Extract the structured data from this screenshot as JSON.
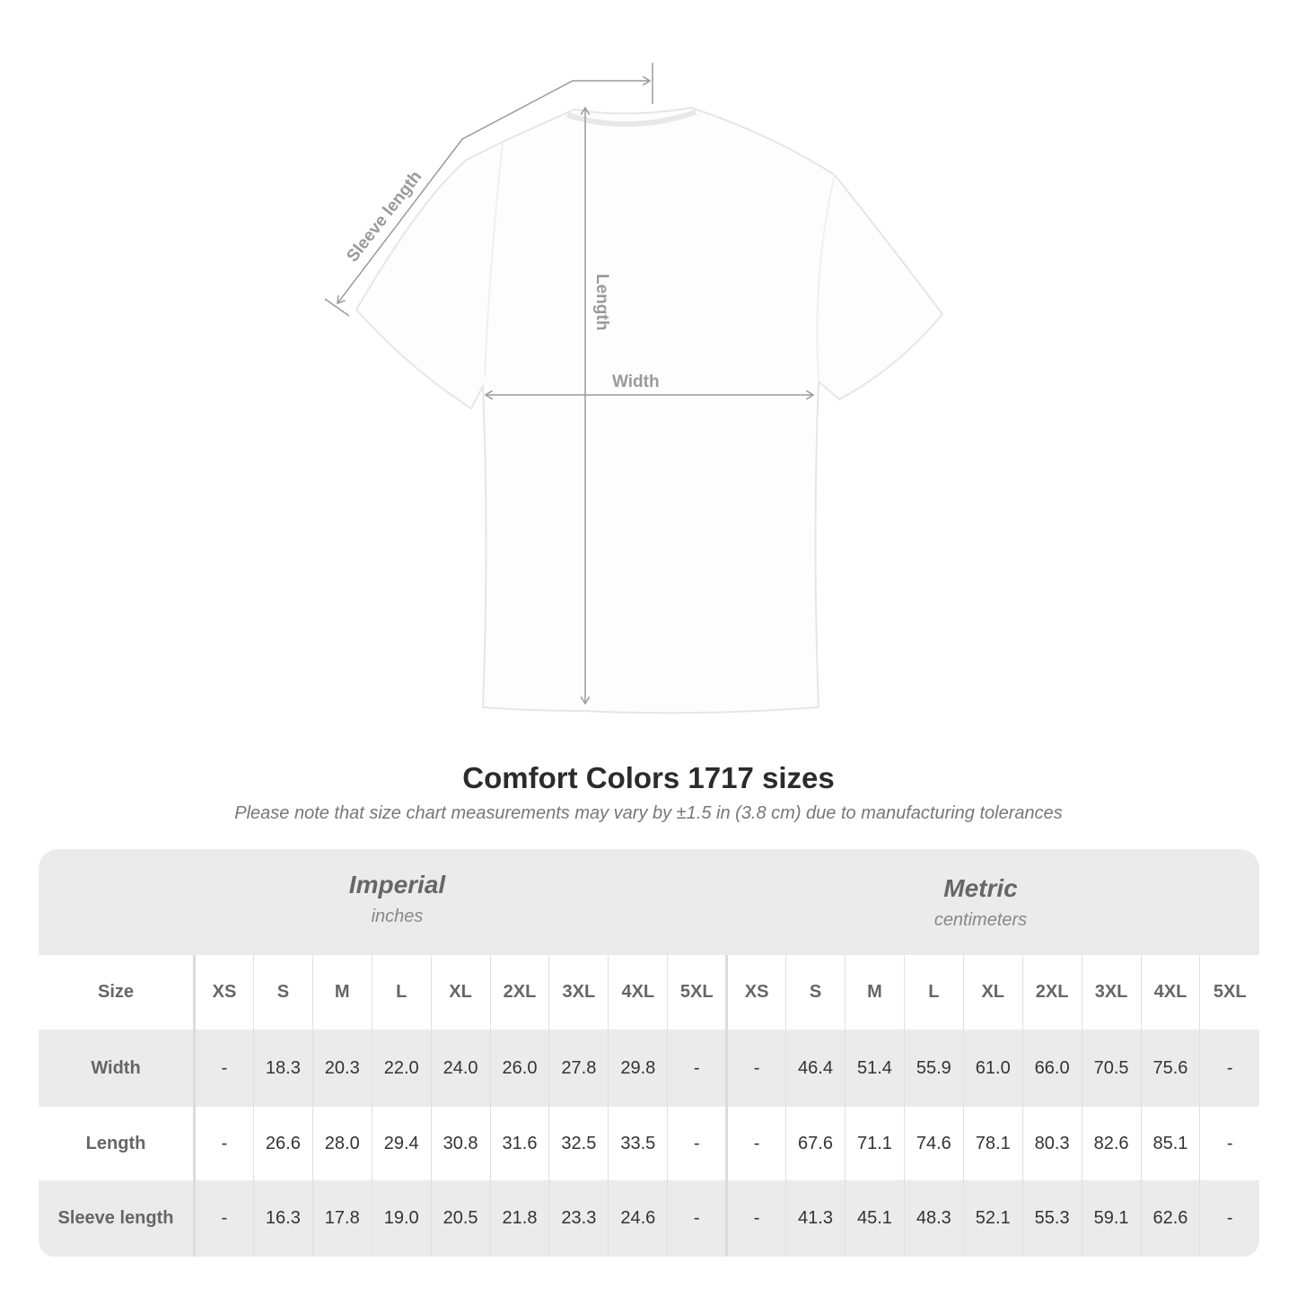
{
  "diagram": {
    "labels": {
      "sleeve": "Sleeve length",
      "length": "Length",
      "width": "Width"
    },
    "line_color": "#9a9a9a"
  },
  "title": "Comfort Colors 1717 sizes",
  "subtitle": "Please note that size chart measurements may vary by ±1.5 in (3.8 cm) due to manufacturing tolerances",
  "systems": {
    "imperial": {
      "name": "Imperial",
      "unit": "inches"
    },
    "metric": {
      "name": "Metric",
      "unit": "centimeters"
    }
  },
  "table": {
    "size_label": "Size",
    "sizes": [
      "XS",
      "S",
      "M",
      "L",
      "XL",
      "2XL",
      "3XL",
      "4XL",
      "5XL"
    ],
    "rows": [
      {
        "label": "Width",
        "imperial": [
          "-",
          "18.3",
          "20.3",
          "22.0",
          "24.0",
          "26.0",
          "27.8",
          "29.8",
          "-"
        ],
        "metric": [
          "-",
          "46.4",
          "51.4",
          "55.9",
          "61.0",
          "66.0",
          "70.5",
          "75.6",
          "-"
        ]
      },
      {
        "label": "Length",
        "imperial": [
          "-",
          "26.6",
          "28.0",
          "29.4",
          "30.8",
          "31.6",
          "32.5",
          "33.5",
          "-"
        ],
        "metric": [
          "-",
          "67.6",
          "71.1",
          "74.6",
          "78.1",
          "80.3",
          "82.6",
          "85.1",
          "-"
        ]
      },
      {
        "label": "Sleeve length",
        "imperial": [
          "-",
          "16.3",
          "17.8",
          "19.0",
          "20.5",
          "21.8",
          "23.3",
          "24.6",
          "-"
        ],
        "metric": [
          "-",
          "41.3",
          "45.1",
          "48.3",
          "52.1",
          "55.3",
          "59.1",
          "62.6",
          "-"
        ]
      }
    ]
  },
  "colors": {
    "band": "#ebebeb",
    "header_text": "#666666",
    "cell_text": "#333333"
  }
}
